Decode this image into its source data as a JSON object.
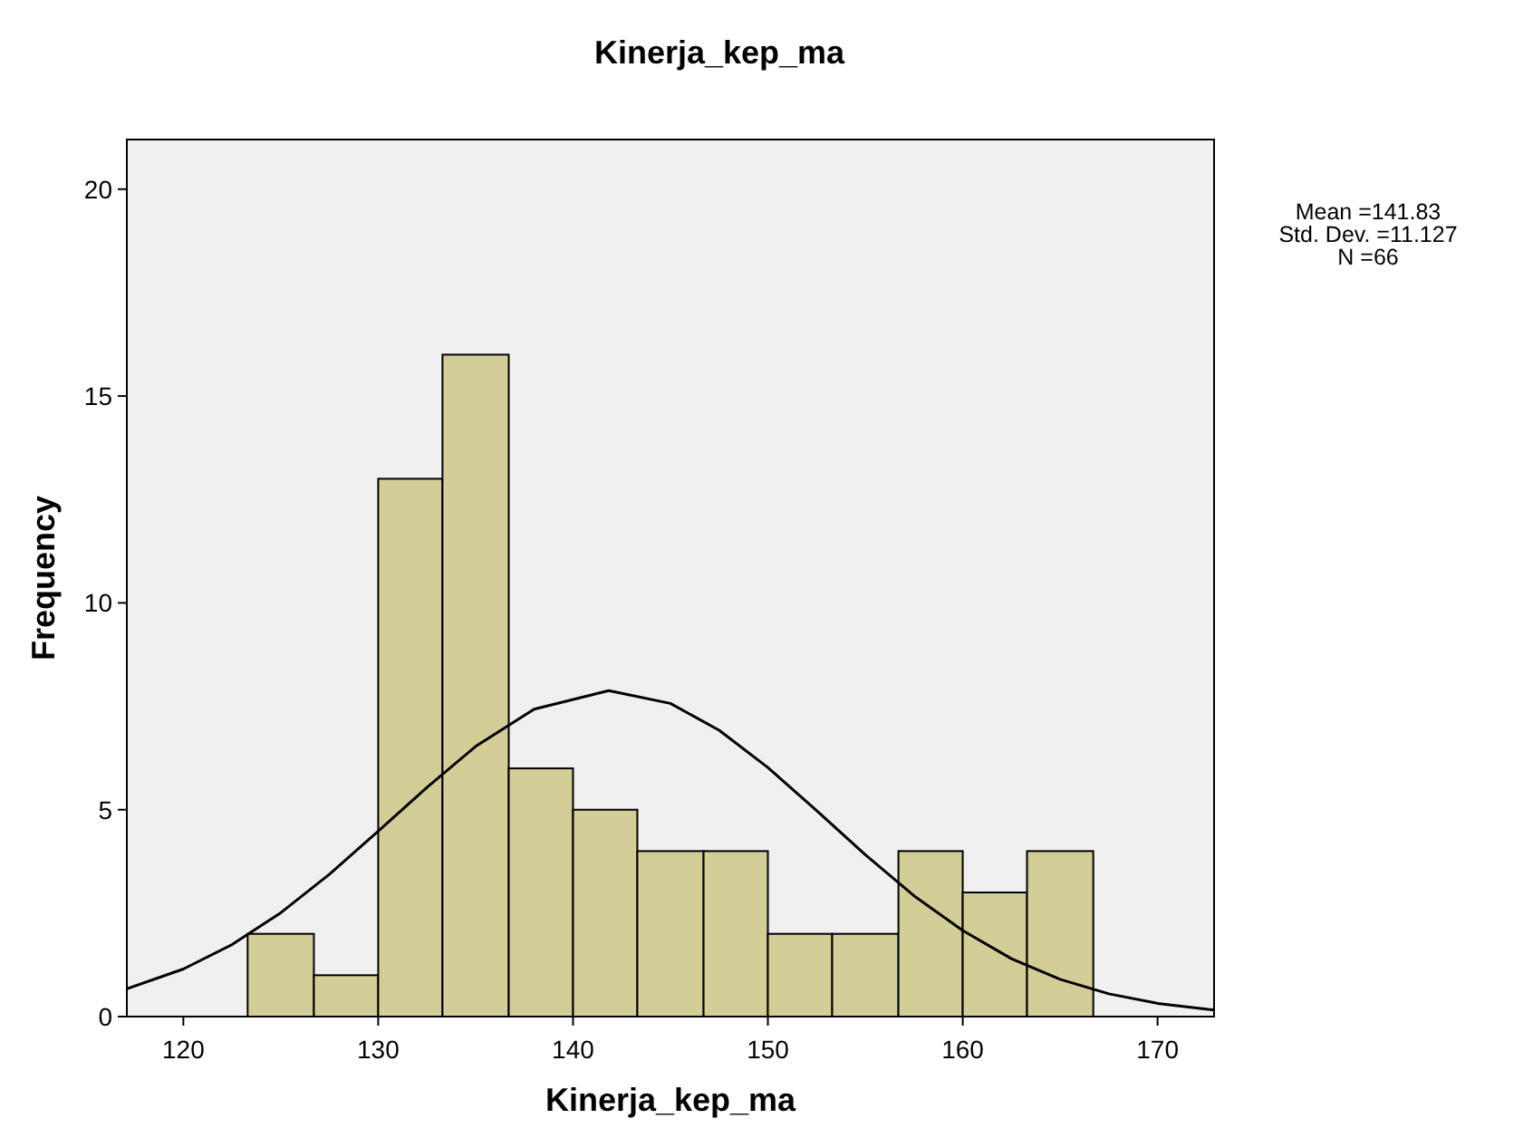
{
  "chart_data": {
    "type": "histogram",
    "title": "Kinerja_kep_ma",
    "xlabel": "Kinerja_kep_ma",
    "ylabel": "Frequency",
    "bins": [
      123.3,
      126.7,
      130,
      133.3,
      136.7,
      140,
      143.3,
      146.7,
      150,
      153.3,
      156.7,
      160,
      163.3,
      166.7
    ],
    "values": [
      2,
      1,
      13,
      16,
      6,
      5,
      4,
      4,
      2,
      2,
      4,
      3,
      4
    ],
    "color": "#d3ce97",
    "series": [
      {
        "type": "line",
        "color": "#000000",
        "x": [
          117.1,
          120,
          122.5,
          125,
          127.5,
          130,
          132.5,
          135,
          138,
          141.83,
          145,
          147.5,
          150,
          152.5,
          155,
          157.5,
          160,
          162.5,
          165,
          167.5,
          170,
          172.9
        ],
        "values": [
          0.67,
          1.15,
          1.74,
          2.51,
          3.44,
          4.48,
          5.54,
          6.53,
          7.43,
          7.88,
          7.57,
          6.92,
          6.02,
          4.98,
          3.91,
          2.92,
          2.08,
          1.4,
          0.9,
          0.55,
          0.32,
          0.16
        ]
      }
    ],
    "xlim": [
      117.1,
      172.9
    ],
    "xticks": [
      120,
      130,
      140,
      150,
      160,
      170
    ],
    "ylim": [
      0,
      21.2
    ],
    "yticks": [
      0,
      5,
      10,
      15,
      20
    ],
    "grid": false,
    "annotations": [
      "Mean =141.83",
      "Std. Dev. =11.127",
      "N =66"
    ]
  }
}
